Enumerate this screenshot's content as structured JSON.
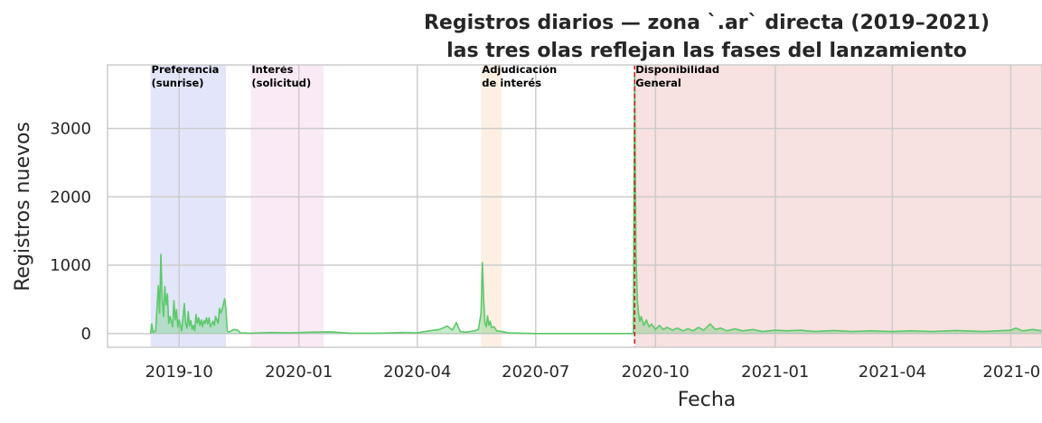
{
  "chart_data": {
    "type": "area",
    "title": [
      "Registros diarios — zona `.ar` directa (2019–2021)",
      "las tres olas reflejan las fases del lanzamiento"
    ],
    "xlabel": "Fecha",
    "ylabel": "Registros nuevos",
    "xlim": [
      "2019-08-07",
      "2021-07-25"
    ],
    "ylim": [
      -200,
      3930
    ],
    "x_ticks": [
      {
        "date": "2019-10-01",
        "label": "2019-10"
      },
      {
        "date": "2020-01-01",
        "label": "2020-01"
      },
      {
        "date": "2020-04-01",
        "label": "2020-04"
      },
      {
        "date": "2020-07-01",
        "label": "2020-07"
      },
      {
        "date": "2020-10-01",
        "label": "2020-10"
      },
      {
        "date": "2021-01-01",
        "label": "2021-01"
      },
      {
        "date": "2021-04-01",
        "label": "2021-04"
      },
      {
        "date": "2021-07-01",
        "label": "2021-0"
      }
    ],
    "y_ticks": [
      0,
      1000,
      2000,
      3000
    ],
    "grid": true,
    "series_color": "#5cc96a",
    "phases": [
      {
        "lines": [
          "Preferencia",
          "(sunrise)"
        ],
        "start": "2019-09-09",
        "end": "2019-11-06",
        "color": "#c8cdf5"
      },
      {
        "lines": [
          "Interés",
          "(solicitud)"
        ],
        "start": "2019-11-25",
        "end": "2020-01-20",
        "color": "#f5d5ee"
      },
      {
        "lines": [
          "Adjudicación",
          "de interés"
        ],
        "start": "2020-05-20",
        "end": "2020-06-05",
        "color": "#fbe1c8"
      },
      {
        "lines": [
          "Disponibilidad",
          "General"
        ],
        "start": "2020-09-15",
        "end": "2021-07-25",
        "color": "#f2c4c4"
      }
    ],
    "ga_marker": {
      "date": "2020-09-15",
      "color": "#cc2222"
    },
    "series": [
      {
        "values": [
          [
            "2019-09-09",
            0
          ],
          [
            "2019-09-10",
            140
          ],
          [
            "2019-09-11",
            20
          ],
          [
            "2019-09-13",
            40
          ],
          [
            "2019-09-15",
            700
          ],
          [
            "2019-09-16",
            300
          ],
          [
            "2019-09-17",
            1160
          ],
          [
            "2019-09-18",
            500
          ],
          [
            "2019-09-19",
            250
          ],
          [
            "2019-09-20",
            690
          ],
          [
            "2019-09-21",
            420
          ],
          [
            "2019-09-22",
            580
          ],
          [
            "2019-09-23",
            150
          ],
          [
            "2019-09-24",
            250
          ],
          [
            "2019-09-26",
            100
          ],
          [
            "2019-09-27",
            480
          ],
          [
            "2019-09-28",
            200
          ],
          [
            "2019-09-29",
            350
          ],
          [
            "2019-09-30",
            100
          ],
          [
            "2019-10-01",
            200
          ],
          [
            "2019-10-03",
            40
          ],
          [
            "2019-10-05",
            440
          ],
          [
            "2019-10-06",
            150
          ],
          [
            "2019-10-07",
            80
          ],
          [
            "2019-10-08",
            320
          ],
          [
            "2019-10-09",
            110
          ],
          [
            "2019-10-10",
            190
          ],
          [
            "2019-10-11",
            60
          ],
          [
            "2019-10-12",
            120
          ],
          [
            "2019-10-13",
            40
          ],
          [
            "2019-10-14",
            280
          ],
          [
            "2019-10-15",
            150
          ],
          [
            "2019-10-16",
            230
          ],
          [
            "2019-10-17",
            120
          ],
          [
            "2019-10-18",
            200
          ],
          [
            "2019-10-19",
            100
          ],
          [
            "2019-10-20",
            190
          ],
          [
            "2019-10-21",
            150
          ],
          [
            "2019-10-22",
            230
          ],
          [
            "2019-10-23",
            140
          ],
          [
            "2019-10-24",
            230
          ],
          [
            "2019-10-25",
            100
          ],
          [
            "2019-10-27",
            180
          ],
          [
            "2019-10-28",
            120
          ],
          [
            "2019-10-29",
            250
          ],
          [
            "2019-10-31",
            150
          ],
          [
            "2019-11-01",
            370
          ],
          [
            "2019-11-02",
            300
          ],
          [
            "2019-11-03",
            350
          ],
          [
            "2019-11-05",
            510
          ],
          [
            "2019-11-06",
            350
          ],
          [
            "2019-11-07",
            40
          ],
          [
            "2019-11-08",
            20
          ],
          [
            "2019-11-12",
            60
          ],
          [
            "2019-11-15",
            50
          ],
          [
            "2019-11-17",
            10
          ],
          [
            "2019-11-25",
            5
          ],
          [
            "2019-12-10",
            15
          ],
          [
            "2019-12-25",
            10
          ],
          [
            "2020-01-10",
            20
          ],
          [
            "2020-01-25",
            25
          ],
          [
            "2020-02-10",
            5
          ],
          [
            "2020-03-01",
            5
          ],
          [
            "2020-03-20",
            15
          ],
          [
            "2020-04-01",
            10
          ],
          [
            "2020-04-10",
            40
          ],
          [
            "2020-04-18",
            60
          ],
          [
            "2020-04-24",
            110
          ],
          [
            "2020-04-28",
            50
          ],
          [
            "2020-05-01",
            160
          ],
          [
            "2020-05-04",
            30
          ],
          [
            "2020-05-08",
            20
          ],
          [
            "2020-05-15",
            40
          ],
          [
            "2020-05-18",
            60
          ],
          [
            "2020-05-20",
            300
          ],
          [
            "2020-05-21",
            1040
          ],
          [
            "2020-05-22",
            500
          ],
          [
            "2020-05-23",
            150
          ],
          [
            "2020-05-24",
            100
          ],
          [
            "2020-05-25",
            260
          ],
          [
            "2020-05-26",
            120
          ],
          [
            "2020-05-27",
            180
          ],
          [
            "2020-05-28",
            90
          ],
          [
            "2020-05-30",
            100
          ],
          [
            "2020-06-01",
            40
          ],
          [
            "2020-06-05",
            30
          ],
          [
            "2020-06-10",
            10
          ],
          [
            "2020-07-01",
            0
          ],
          [
            "2020-08-01",
            0
          ],
          [
            "2020-09-01",
            0
          ],
          [
            "2020-09-14",
            0
          ],
          [
            "2020-09-15",
            3820
          ],
          [
            "2020-09-16",
            1200
          ],
          [
            "2020-09-17",
            500
          ],
          [
            "2020-09-18",
            300
          ],
          [
            "2020-09-19",
            180
          ],
          [
            "2020-09-20",
            250
          ],
          [
            "2020-09-22",
            120
          ],
          [
            "2020-09-24",
            200
          ],
          [
            "2020-09-26",
            100
          ],
          [
            "2020-09-28",
            140
          ],
          [
            "2020-10-01",
            60
          ],
          [
            "2020-10-04",
            120
          ],
          [
            "2020-10-07",
            60
          ],
          [
            "2020-10-10",
            90
          ],
          [
            "2020-10-14",
            50
          ],
          [
            "2020-10-18",
            80
          ],
          [
            "2020-10-22",
            40
          ],
          [
            "2020-10-26",
            70
          ],
          [
            "2020-10-30",
            40
          ],
          [
            "2020-11-03",
            90
          ],
          [
            "2020-11-07",
            50
          ],
          [
            "2020-11-12",
            140
          ],
          [
            "2020-11-16",
            60
          ],
          [
            "2020-11-20",
            80
          ],
          [
            "2020-11-25",
            40
          ],
          [
            "2020-12-01",
            70
          ],
          [
            "2020-12-07",
            40
          ],
          [
            "2020-12-15",
            60
          ],
          [
            "2020-12-22",
            30
          ],
          [
            "2021-01-01",
            50
          ],
          [
            "2021-01-10",
            40
          ],
          [
            "2021-01-20",
            50
          ],
          [
            "2021-02-01",
            30
          ],
          [
            "2021-02-15",
            45
          ],
          [
            "2021-03-01",
            30
          ],
          [
            "2021-03-15",
            40
          ],
          [
            "2021-04-01",
            30
          ],
          [
            "2021-04-15",
            40
          ],
          [
            "2021-05-01",
            30
          ],
          [
            "2021-05-20",
            45
          ],
          [
            "2021-06-10",
            30
          ],
          [
            "2021-07-01",
            50
          ],
          [
            "2021-07-05",
            80
          ],
          [
            "2021-07-10",
            40
          ],
          [
            "2021-07-18",
            60
          ],
          [
            "2021-07-25",
            40
          ]
        ]
      }
    ]
  }
}
